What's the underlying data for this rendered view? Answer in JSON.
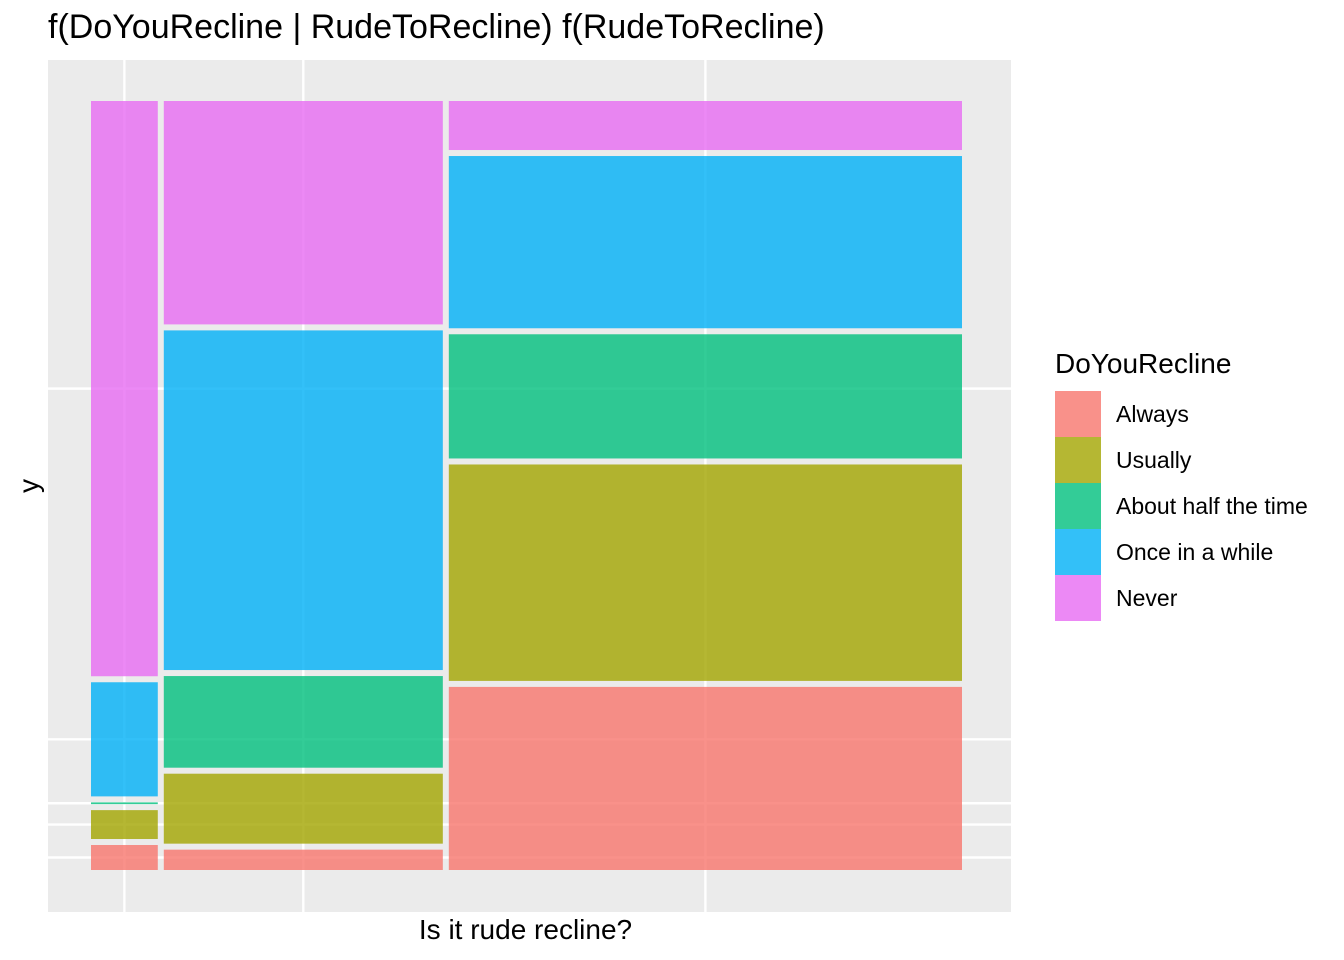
{
  "chart_data": {
    "type": "mosaic",
    "title": "f(DoYouRecline | RudeToRecline) f(RudeToRecline)",
    "xlabel": "Is it rude recline?",
    "ylabel": "y",
    "x_tick_labels": [],
    "y_tick_labels": [],
    "grid": true,
    "legend": {
      "title": "DoYouRecline",
      "placement": "right",
      "entries": [
        "Always",
        "Usually",
        "About half the time",
        "Once in a while",
        "Never"
      ]
    },
    "colors": {
      "Always": "#F8766D",
      "Usually": "#A3A500",
      "About half the time": "#00BF7D",
      "Once in a while": "#00B0F6",
      "Never": "#E76BF3"
    },
    "fill_opacity": 0.8,
    "columns": [
      {
        "width_fraction": 0.083,
        "segments": {
          "Always": 0.04,
          "Usually": 0.045,
          "About half the time": 0.01,
          "Once in a while": 0.155,
          "Never": 0.75
        }
      },
      {
        "width_fraction": 0.325,
        "segments": {
          "Always": 0.034,
          "Usually": 0.098,
          "About half the time": 0.126,
          "Once in a while": 0.446,
          "Never": 0.296
        }
      },
      {
        "width_fraction": 0.592,
        "segments": {
          "Always": 0.244,
          "Usually": 0.287,
          "About half the time": 0.168,
          "Once in a while": 0.23,
          "Never": 0.071
        }
      }
    ]
  }
}
